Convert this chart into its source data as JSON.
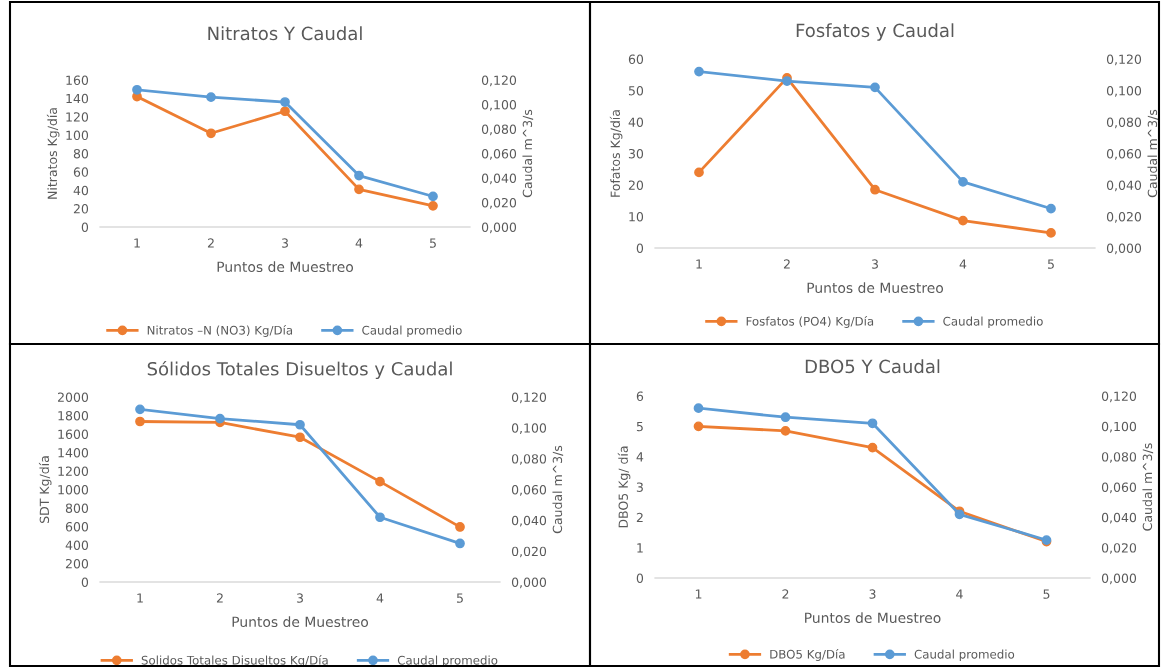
{
  "chart_data": [
    {
      "type": "line",
      "title": "Nitratos Y Caudal",
      "xlabel": "Puntos de Muestreo",
      "ylabel": "Nitratos Kg/día",
      "y2label": "Caudal m^3/s",
      "categories": [
        "1",
        "2",
        "3",
        "4",
        "5"
      ],
      "series": [
        {
          "name": "Nitratos –N (NO3) Kg/Día",
          "color": "#ed7d31",
          "values": [
            142,
            102,
            126,
            41,
            23
          ]
        },
        {
          "name": "Caudal promedio",
          "color": "#5b9bd5",
          "axis": "y2",
          "values": [
            0.112,
            0.106,
            0.102,
            0.042,
            0.025
          ]
        }
      ],
      "ylim": [
        0,
        160
      ],
      "yticks": [
        0,
        20,
        40,
        60,
        80,
        100,
        120,
        140,
        160
      ],
      "y2lim": [
        0,
        0.12
      ],
      "y2ticks": [
        {
          "value": 0,
          "label": "0,000"
        },
        {
          "value": 0.02,
          "label": "0,020"
        },
        {
          "value": 0.04,
          "label": "0,040"
        },
        {
          "value": 0.06,
          "label": "0,060"
        },
        {
          "value": 0.08,
          "label": "0,080"
        },
        {
          "value": 0.1,
          "label": "0,100"
        },
        {
          "value": 0.12,
          "label": "0,120"
        }
      ],
      "marker": "circle",
      "line_style": "solid",
      "legend": "bottom",
      "grid": false
    },
    {
      "type": "line",
      "title": "Fosfatos y Caudal",
      "xlabel": "Puntos de Muestreo",
      "ylabel": "Fofatos Kg/día",
      "y2label": "Caudal m^3/s",
      "categories": [
        "1",
        "2",
        "3",
        "4",
        "5"
      ],
      "series": [
        {
          "name": "Fosfatos (PO4) Kg/Día",
          "color": "#ed7d31",
          "values": [
            24,
            54,
            18.5,
            8.7,
            4.8
          ]
        },
        {
          "name": "Caudal promedio",
          "color": "#5b9bd5",
          "axis": "y2",
          "values": [
            0.112,
            0.106,
            0.102,
            0.042,
            0.025
          ]
        }
      ],
      "ylim": [
        0,
        60
      ],
      "yticks": [
        0,
        10,
        20,
        30,
        40,
        50,
        60
      ],
      "y2lim": [
        0,
        0.12
      ],
      "y2ticks": [
        {
          "value": 0,
          "label": "0,000"
        },
        {
          "value": 0.02,
          "label": "0,020"
        },
        {
          "value": 0.04,
          "label": "0,040"
        },
        {
          "value": 0.06,
          "label": "0,060"
        },
        {
          "value": 0.08,
          "label": "0,080"
        },
        {
          "value": 0.1,
          "label": "0,100"
        },
        {
          "value": 0.12,
          "label": "0,120"
        }
      ],
      "marker": "circle",
      "line_style": "solid",
      "legend": "bottom",
      "grid": false
    },
    {
      "type": "line",
      "title": "Sólidos Totales Disueltos y Caudal",
      "xlabel": "Puntos de Muestreo",
      "ylabel": "SDT Kg/día",
      "y2label": "Caudal m^3/s",
      "categories": [
        "1",
        "2",
        "3",
        "4",
        "5"
      ],
      "series": [
        {
          "name": "Solidos Totales Disueltos Kg/Día",
          "color": "#ed7d31",
          "values": [
            1735,
            1725,
            1565,
            1085,
            595
          ]
        },
        {
          "name": "Caudal promedio",
          "color": "#5b9bd5",
          "axis": "y2",
          "values": [
            0.112,
            0.106,
            0.102,
            0.042,
            0.025
          ]
        }
      ],
      "ylim": [
        0,
        2000
      ],
      "yticks": [
        0,
        200,
        400,
        600,
        800,
        1000,
        1200,
        1400,
        1600,
        1800,
        2000
      ],
      "y2lim": [
        0,
        0.12
      ],
      "y2ticks": [
        {
          "value": 0,
          "label": "0,000"
        },
        {
          "value": 0.02,
          "label": "0,020"
        },
        {
          "value": 0.04,
          "label": "0,040"
        },
        {
          "value": 0.06,
          "label": "0,060"
        },
        {
          "value": 0.08,
          "label": "0,080"
        },
        {
          "value": 0.1,
          "label": "0,100"
        },
        {
          "value": 0.12,
          "label": "0,120"
        }
      ],
      "marker": "circle",
      "line_style": "solid",
      "legend": "bottom",
      "grid": false
    },
    {
      "type": "line",
      "title": "DBO5 Y Caudal",
      "xlabel": "Puntos de Muestreo",
      "ylabel": "DBO5 Kg/ día",
      "y2label": "Caudal m^3/s",
      "categories": [
        "1",
        "2",
        "3",
        "4",
        "5"
      ],
      "series": [
        {
          "name": "DBO5 Kg/Día",
          "color": "#ed7d31",
          "values": [
            5.0,
            4.85,
            4.3,
            2.2,
            1.2
          ]
        },
        {
          "name": "Caudal promedio",
          "color": "#5b9bd5",
          "axis": "y2",
          "values": [
            0.112,
            0.106,
            0.102,
            0.042,
            0.025
          ]
        }
      ],
      "ylim": [
        0,
        6
      ],
      "yticks": [
        0,
        1,
        2,
        3,
        4,
        5,
        6
      ],
      "y2lim": [
        0,
        0.12
      ],
      "y2ticks": [
        {
          "value": 0,
          "label": "0,000"
        },
        {
          "value": 0.02,
          "label": "0,020"
        },
        {
          "value": 0.04,
          "label": "0,040"
        },
        {
          "value": 0.06,
          "label": "0,060"
        },
        {
          "value": 0.08,
          "label": "0,080"
        },
        {
          "value": 0.1,
          "label": "0,100"
        },
        {
          "value": 0.12,
          "label": "0,120"
        }
      ],
      "marker": "circle",
      "line_style": "solid",
      "legend": "bottom",
      "grid": false
    }
  ]
}
